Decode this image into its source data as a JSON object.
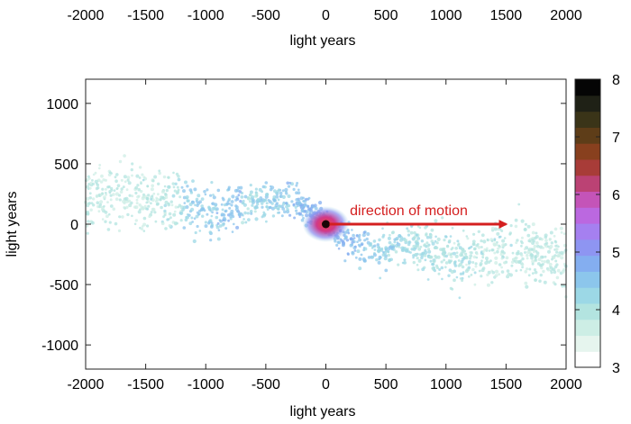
{
  "chart_data": {
    "type": "heatmap",
    "top_axis": {
      "ticks": [
        "-2000",
        "-1500",
        "-1000",
        "-500",
        "0",
        "500",
        "1000",
        "1500",
        "2000"
      ],
      "label": "light years"
    },
    "xlabel": "light years",
    "ylabel": "light years",
    "xlim": [
      -2000,
      2000
    ],
    "ylim": [
      -1200,
      1200
    ],
    "xticks": [
      -2000,
      -1500,
      -1000,
      -500,
      0,
      500,
      1000,
      1500,
      2000
    ],
    "xtick_labels": [
      "-2000",
      "-1500",
      "-1000",
      "-500",
      "0",
      "500",
      "1000",
      "1500",
      "2000"
    ],
    "yticks": [
      1000,
      500,
      0,
      -500,
      -1000
    ],
    "ytick_labels": [
      "1000",
      "500",
      "0",
      "-500",
      "-1000"
    ],
    "grid": false,
    "colorbar": {
      "range": [
        3,
        8
      ],
      "ticks": [
        8,
        7,
        6,
        5,
        4,
        3
      ],
      "tick_labels": [
        "8",
        "7",
        "6",
        "5",
        "4",
        "3"
      ],
      "colors": [
        "#ffffff",
        "#e6f5ee",
        "#cdeee5",
        "#b3e4e0",
        "#9cd8e6",
        "#8cc6ec",
        "#84aef0",
        "#8e95f2",
        "#a580f0",
        "#bb68e0",
        "#c454b8",
        "#bb4274",
        "#a83c38",
        "#88401e",
        "#5e3d18",
        "#3a3418",
        "#1f2116",
        "#050505"
      ]
    },
    "stream_centerline": {
      "x": [
        -2000,
        -1700,
        -1400,
        -1100,
        -900,
        -700,
        -500,
        -300,
        -150,
        0,
        150,
        300,
        500,
        700,
        900,
        1100,
        1300,
        1500,
        1700,
        2000
      ],
      "y": [
        200,
        235,
        200,
        140,
        110,
        140,
        200,
        220,
        120,
        0,
        -110,
        -210,
        -210,
        -180,
        -250,
        -290,
        -270,
        -220,
        -230,
        -280
      ]
    },
    "annotation": {
      "text": "direction of motion",
      "arrow_from": [
        0,
        0
      ],
      "arrow_to": [
        1500,
        0
      ],
      "color": "#d41f1f"
    }
  }
}
